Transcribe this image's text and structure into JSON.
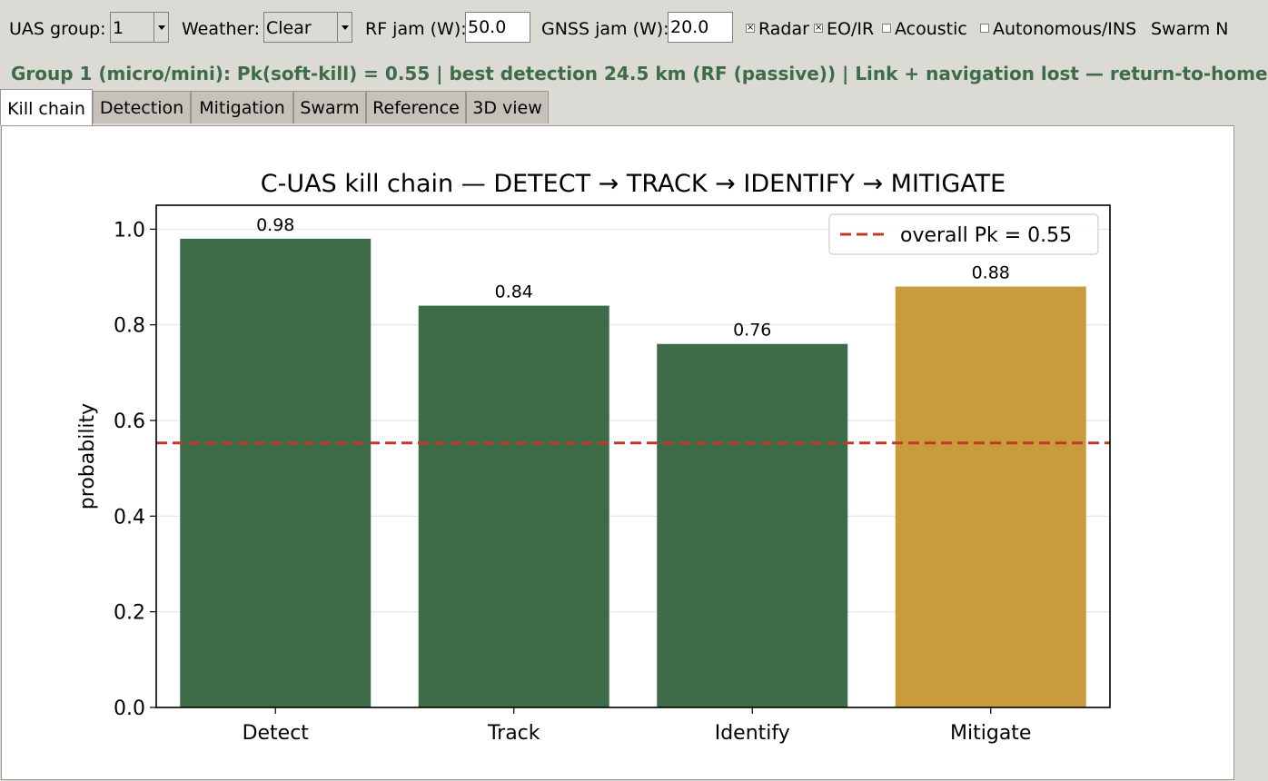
{
  "toolbar": {
    "uas_group_label": "UAS group:",
    "uas_group_value": "1",
    "weather_label": "Weather:",
    "weather_value": "Clear",
    "rf_jam_label": "RF jam (W):",
    "rf_jam_value": "50.0",
    "gnss_jam_label": "GNSS jam (W):",
    "gnss_jam_value": "20.0",
    "radar_label": "Radar",
    "radar_checked": true,
    "eoir_label": "EO/IR",
    "eoir_checked": true,
    "acoustic_label": "Acoustic",
    "acoustic_checked": false,
    "autonomous_label": "Autonomous/INS",
    "autonomous_checked": false,
    "swarm_label": "Swarm N"
  },
  "status": {
    "text": "Group 1 (micro/mini): Pk(soft-kill) = 0.55   |   best detection 24.5 km (RF (passive))   |   Link + navigation lost — return-to-home"
  },
  "tabs": [
    {
      "label": "Kill chain",
      "active": true
    },
    {
      "label": "Detection",
      "active": false
    },
    {
      "label": "Mitigation",
      "active": false
    },
    {
      "label": "Swarm",
      "active": false
    },
    {
      "label": "Reference",
      "active": false
    },
    {
      "label": "3D view",
      "active": false
    }
  ],
  "chart_data": {
    "type": "bar",
    "title": "C-UAS kill chain — DETECT → TRACK → IDENTIFY → MITIGATE",
    "xlabel": "",
    "ylabel": "probability",
    "categories": [
      "Detect",
      "Track",
      "Identify",
      "Mitigate"
    ],
    "values": [
      0.98,
      0.84,
      0.76,
      0.88
    ],
    "value_labels": [
      "0.98",
      "0.84",
      "0.76",
      "0.88"
    ],
    "bar_colors": [
      "#3e6c48",
      "#3e6c48",
      "#3e6c48",
      "#c89b3c"
    ],
    "ylim": [
      0,
      1.05
    ],
    "yticks": [
      0.0,
      0.2,
      0.4,
      0.6,
      0.8,
      1.0
    ],
    "ytick_labels": [
      "0.0",
      "0.2",
      "0.4",
      "0.6",
      "0.8",
      "1.0"
    ],
    "grid": "horizontal",
    "reference_line": {
      "value": 0.553,
      "color": "#c0392b",
      "style": "dashed",
      "label": "overall Pk = 0.55"
    },
    "legend": "top-right"
  }
}
